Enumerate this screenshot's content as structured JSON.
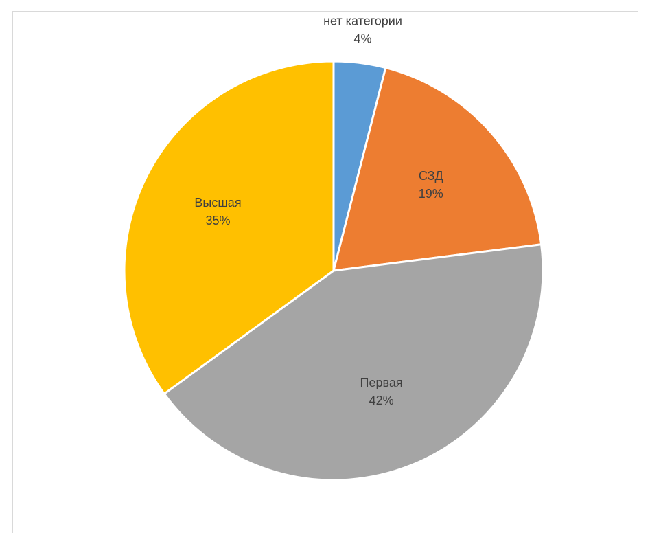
{
  "chart_data": {
    "type": "pie",
    "categories": [
      "нет категории",
      "СЗД",
      "Первая",
      "Высшая"
    ],
    "values": [
      4,
      19,
      42,
      35
    ],
    "value_labels": [
      "4%",
      "19%",
      "42%",
      "35%"
    ],
    "colors": [
      "#5b9bd5",
      "#ed7d31",
      "#a5a5a5",
      "#ffc000"
    ],
    "title": "",
    "legend": "none",
    "start_angle_deg": 0,
    "direction": "clockwise"
  }
}
